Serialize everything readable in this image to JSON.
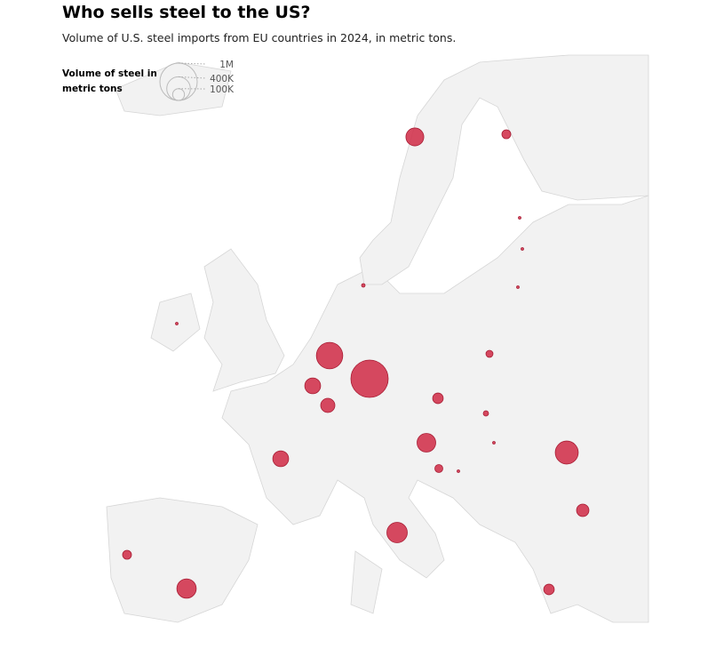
{
  "header": {
    "title": "Who sells steel to the US?",
    "subtitle": "Volume of U.S. steel imports from EU countries in 2024, in metric tons."
  },
  "chart_data": {
    "type": "bubble_map",
    "color": "#d0304a",
    "legend": {
      "title": [
        "Volume of steel in",
        "metric tons"
      ],
      "sizes": [
        {
          "value": 1000000,
          "label": "1M"
        },
        {
          "value": 400000,
          "label": "400K"
        },
        {
          "value": 100000,
          "label": "100K"
        }
      ]
    },
    "values": [
      230000,
      57000,
      5000,
      5000,
      5000,
      9000,
      5000,
      500000,
      1000000,
      180000,
      145000,
      36000,
      80000,
      20000,
      250000,
      5000,
      46000,
      5000,
      380000,
      180000,
      110000,
      300000,
      57000,
      270000,
      80000
    ]
  }
}
